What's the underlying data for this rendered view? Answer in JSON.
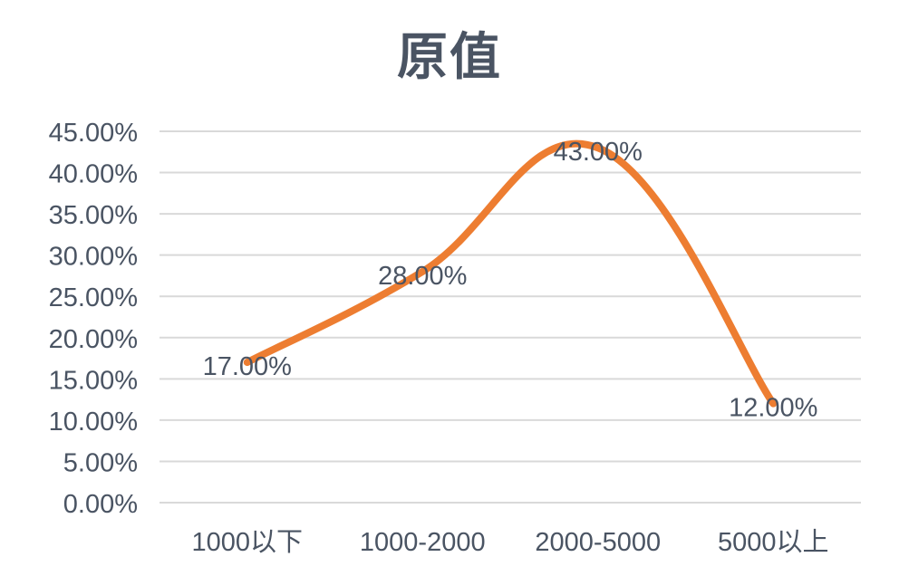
{
  "chart_data": {
    "type": "line",
    "title": "原值",
    "xlabel": "",
    "ylabel": "",
    "categories": [
      "1000以下",
      "1000-2000",
      "2000-5000",
      "5000以上"
    ],
    "series": [
      {
        "values": [
          0.17,
          0.28,
          0.43,
          0.12
        ],
        "data_labels": [
          "17.00%",
          "28.00%",
          "43.00%",
          "12.00%"
        ],
        "smooth": true
      }
    ],
    "ylim": [
      0,
      0.45
    ],
    "y_ticks": [
      0,
      0.05,
      0.1,
      0.15,
      0.2,
      0.25,
      0.3,
      0.35,
      0.4,
      0.45
    ],
    "y_tick_labels": [
      "0.00%",
      "5.00%",
      "10.00%",
      "15.00%",
      "20.00%",
      "25.00%",
      "30.00%",
      "35.00%",
      "40.00%",
      "45.00%"
    ],
    "grid": true,
    "legend": "none",
    "colors": {
      "line": "#ed7d31",
      "grid": "#d9d9d9",
      "text": "#4a5463",
      "title": "#4a5463"
    }
  }
}
